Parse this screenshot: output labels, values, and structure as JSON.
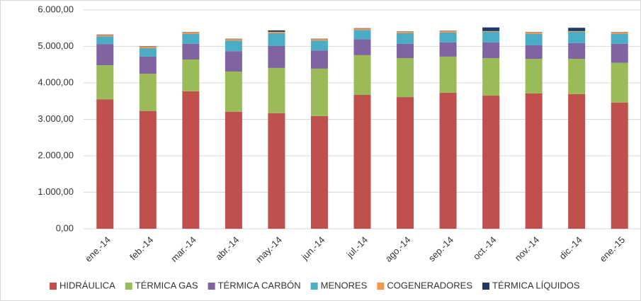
{
  "chart_data": {
    "type": "bar",
    "stacked": true,
    "categories": [
      "ene.-14",
      "feb.-14",
      "mar.-14",
      "abr.-14",
      "may.-14",
      "jun.-14",
      "jul.-14",
      "ago.-14",
      "sep.-14",
      "oct.-14",
      "nov.-14",
      "dic.-14",
      "ene.-15"
    ],
    "series": [
      {
        "name": "HIDRÁULICA",
        "color": "#c0504d",
        "values": [
          3550,
          3230,
          3770,
          3210,
          3170,
          3090,
          3670,
          3610,
          3730,
          3650,
          3710,
          3690,
          3460
        ]
      },
      {
        "name": "TÉRMICA GAS",
        "color": "#9bbb59",
        "values": [
          935,
          1020,
          870,
          1100,
          1240,
          1300,
          1090,
          1070,
          990,
          1030,
          950,
          970,
          1090
        ]
      },
      {
        "name": "TÉRMICA CARBÓN",
        "color": "#8064a2",
        "values": [
          580,
          470,
          430,
          560,
          600,
          500,
          440,
          390,
          390,
          430,
          370,
          430,
          520
        ]
      },
      {
        "name": "MENORES",
        "color": "#4bacc6",
        "values": [
          210,
          230,
          270,
          290,
          350,
          270,
          250,
          290,
          270,
          290,
          310,
          310,
          270
        ]
      },
      {
        "name": "COGENERADORES",
        "color": "#f79646",
        "values": [
          40,
          40,
          40,
          40,
          40,
          40,
          40,
          40,
          40,
          20,
          40,
          20,
          40
        ]
      },
      {
        "name": "TÉRMICA LÍQUIDOS",
        "color": "#1f3864",
        "values": [
          10,
          10,
          10,
          10,
          40,
          10,
          10,
          10,
          10,
          100,
          10,
          90,
          10
        ]
      }
    ],
    "ylim": [
      0,
      6000
    ],
    "yticks": [
      {
        "value": 0,
        "label": "0,00"
      },
      {
        "value": 1000,
        "label": "1.000,00"
      },
      {
        "value": 2000,
        "label": "2.000,00"
      },
      {
        "value": 3000,
        "label": "3.000,00"
      },
      {
        "value": 4000,
        "label": "4.000,00"
      },
      {
        "value": 5000,
        "label": "5.000,00"
      },
      {
        "value": 6000,
        "label": "6.000,00"
      }
    ],
    "grid": true,
    "legend": "bottom"
  }
}
